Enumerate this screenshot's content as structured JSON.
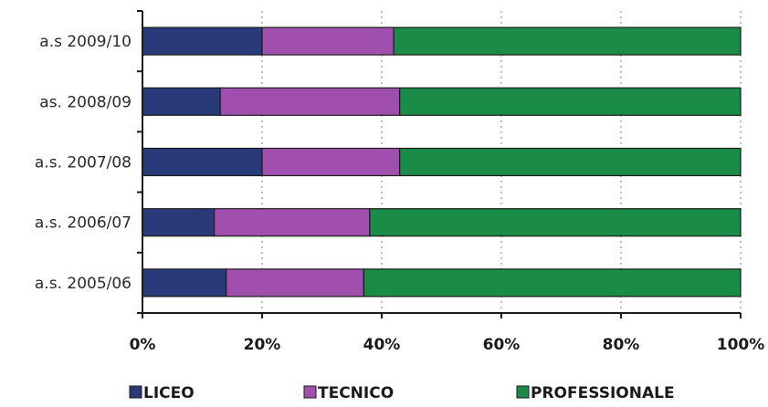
{
  "chart_data": {
    "type": "bar",
    "orientation": "horizontal",
    "stacked": "percent",
    "categories": [
      "a.s 2009/10",
      "as. 2008/09",
      "a.s. 2007/08",
      "a.s. 2006/07",
      "a.s. 2005/06"
    ],
    "series": [
      {
        "name": "LICEO",
        "color": "#283a7a",
        "values": [
          20,
          13,
          20,
          12,
          14
        ]
      },
      {
        "name": "TECNICO",
        "color": "#a14fae",
        "values": [
          22,
          30,
          23,
          26,
          23
        ]
      },
      {
        "name": "PROFESSIONALE",
        "color": "#1a8c47",
        "values": [
          58,
          57,
          57,
          62,
          63
        ]
      }
    ],
    "x_ticks": [
      "0%",
      "20%",
      "40%",
      "60%",
      "80%",
      "100%"
    ],
    "xlim": [
      0,
      100
    ],
    "grid": "vertical dotted",
    "legend_position": "bottom"
  }
}
